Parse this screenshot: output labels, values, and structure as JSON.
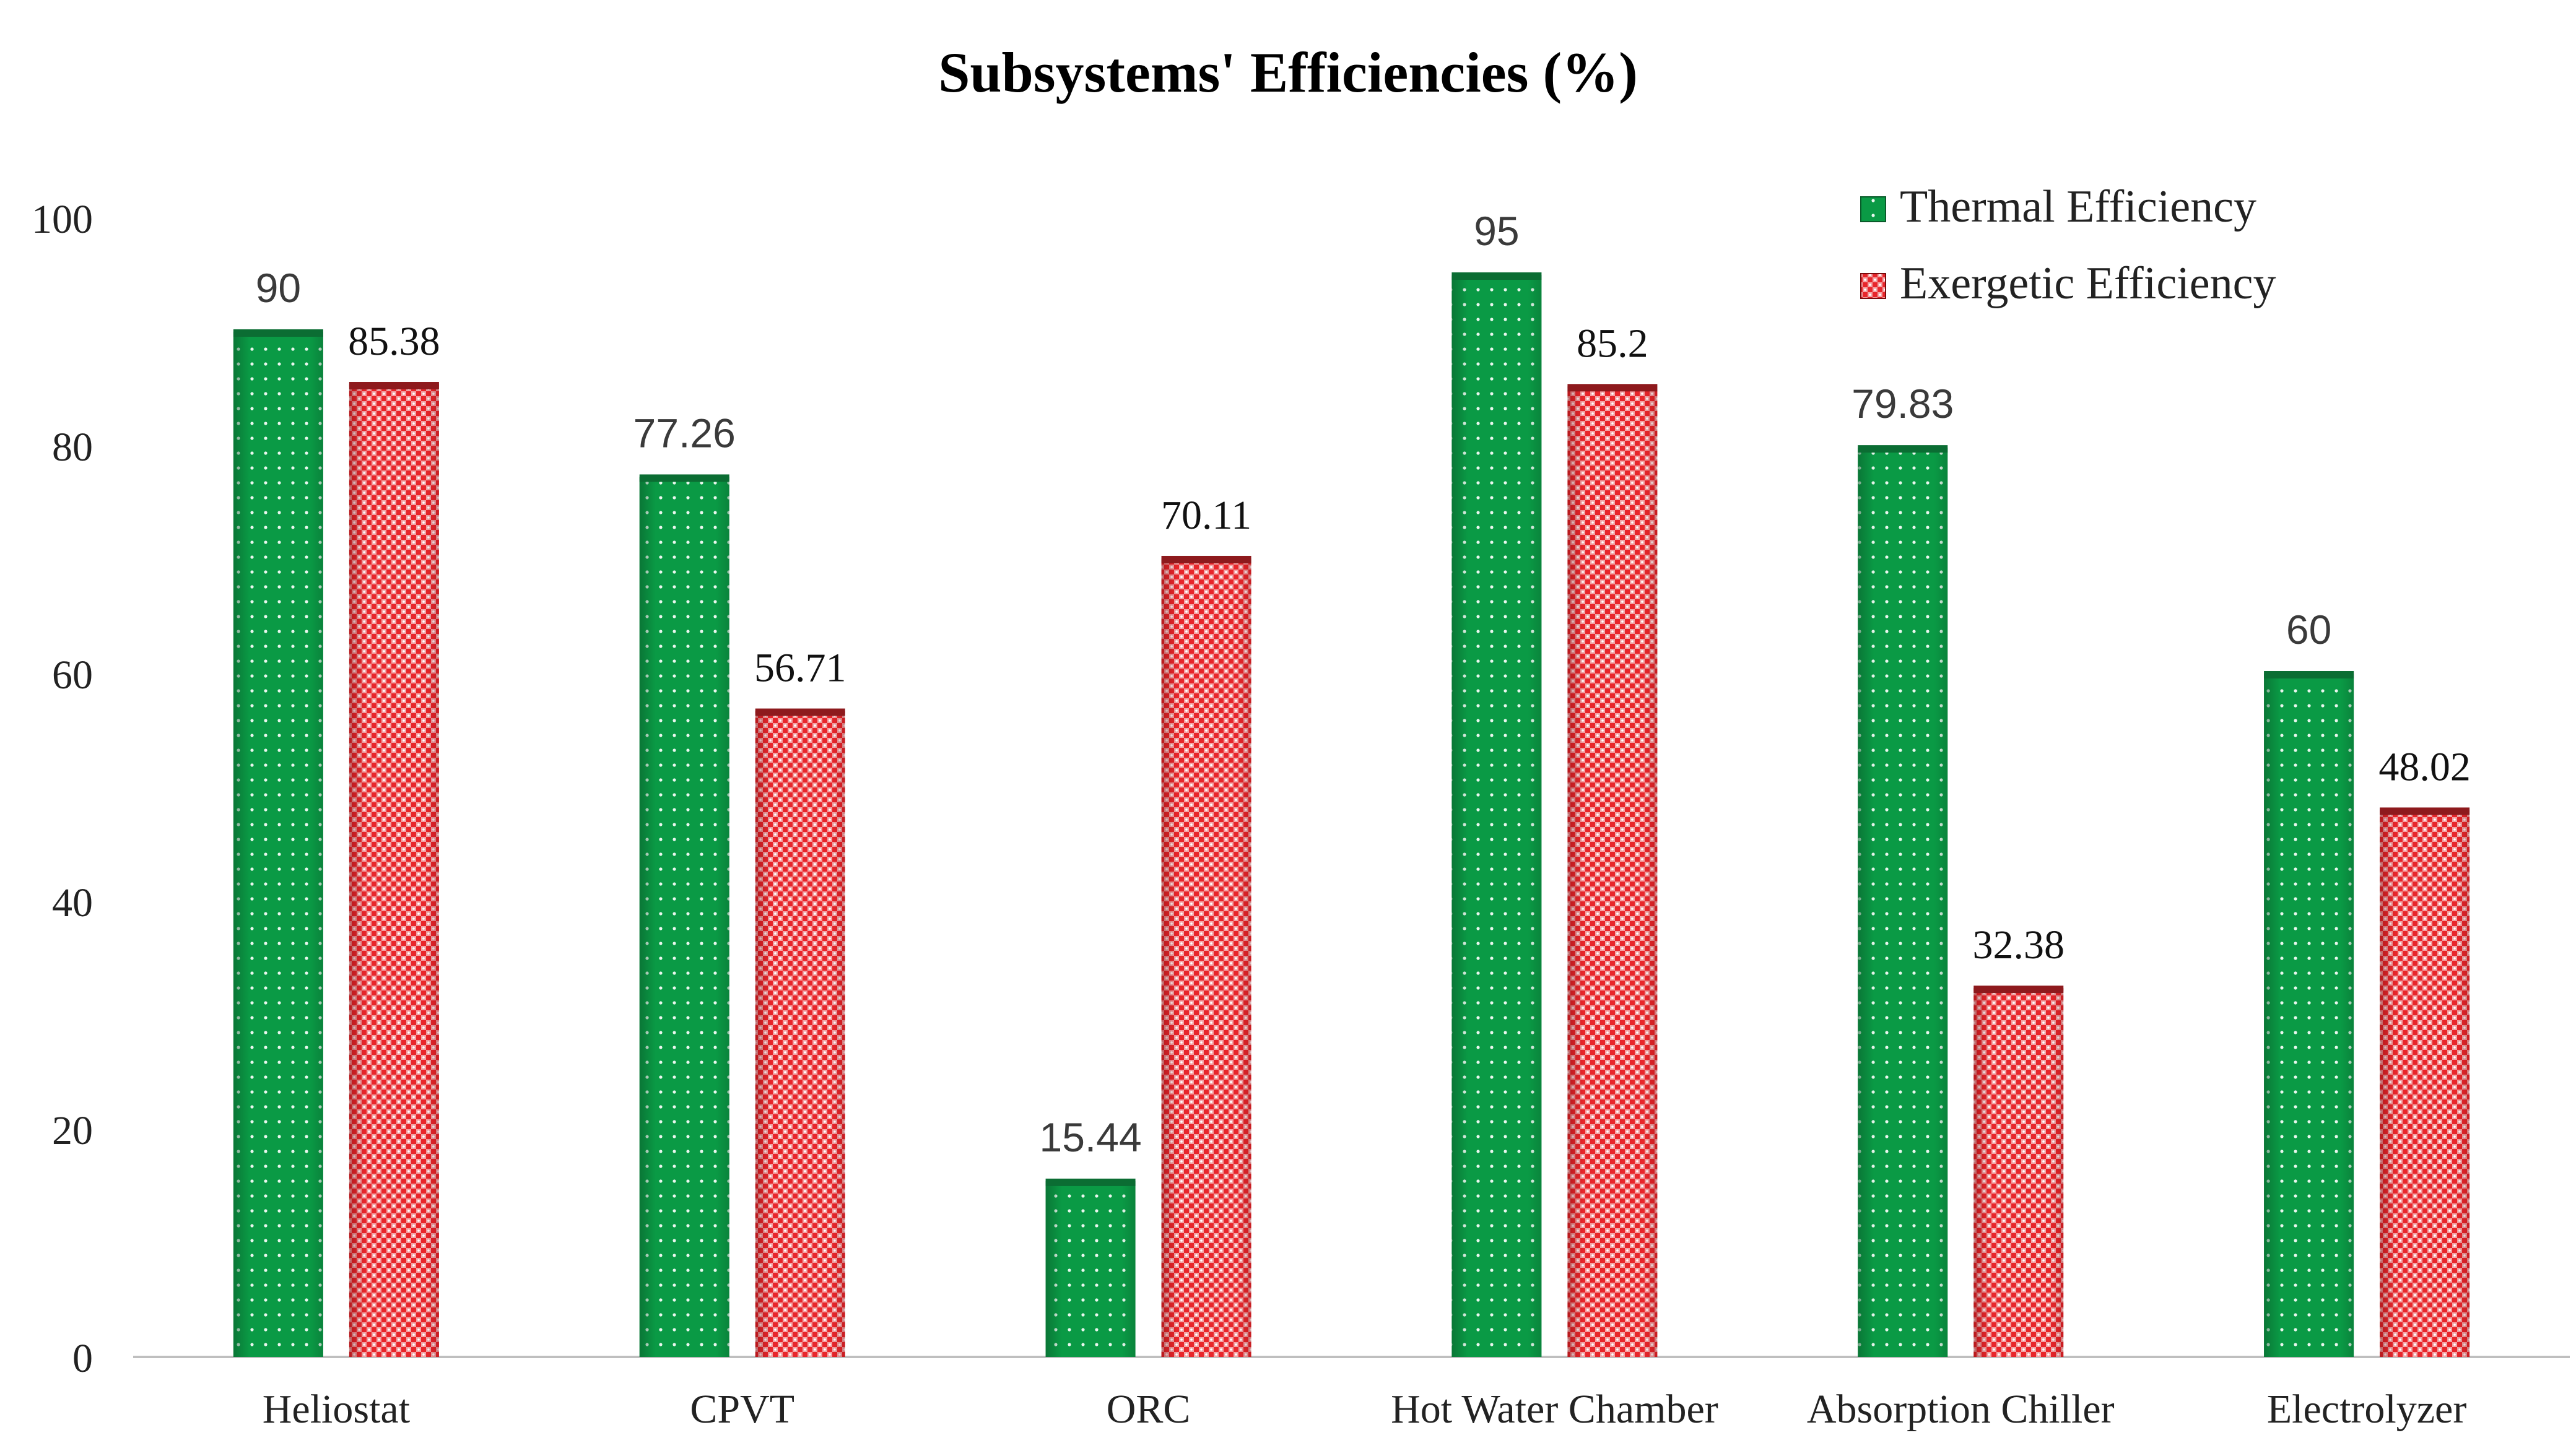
{
  "chart_data": {
    "type": "bar",
    "title": "Subsystems' Efficiencies (%)",
    "xlabel": "",
    "ylabel": "",
    "categories": [
      "Heliostat",
      "CPVT",
      "ORC",
      "Hot Water Chamber",
      "Absorption Chiller",
      "Electrolyzer"
    ],
    "series": [
      {
        "name": "Thermal Efficiency",
        "values": [
          90,
          77.26,
          15.44,
          95,
          79.83,
          60
        ],
        "labels": [
          "90",
          "77.26",
          "15.44",
          "95",
          "79.83",
          "60"
        ],
        "color": "#0a9a45",
        "pattern": "dots"
      },
      {
        "name": "Exergetic Efficiency",
        "values": [
          85.38,
          56.71,
          70.11,
          85.2,
          32.38,
          48.02
        ],
        "labels": [
          "85.38",
          "56.71",
          "70.11",
          "85.2",
          "32.38",
          "48.02"
        ],
        "color": "#e8262b",
        "pattern": "checker"
      }
    ],
    "ylim": [
      0,
      100
    ],
    "yticks": [
      0,
      20,
      40,
      60,
      80,
      100
    ],
    "ytick_labels": [
      "0",
      "20",
      "40",
      "60",
      "80",
      "100"
    ],
    "grid": false,
    "legend_position": "top-right"
  }
}
